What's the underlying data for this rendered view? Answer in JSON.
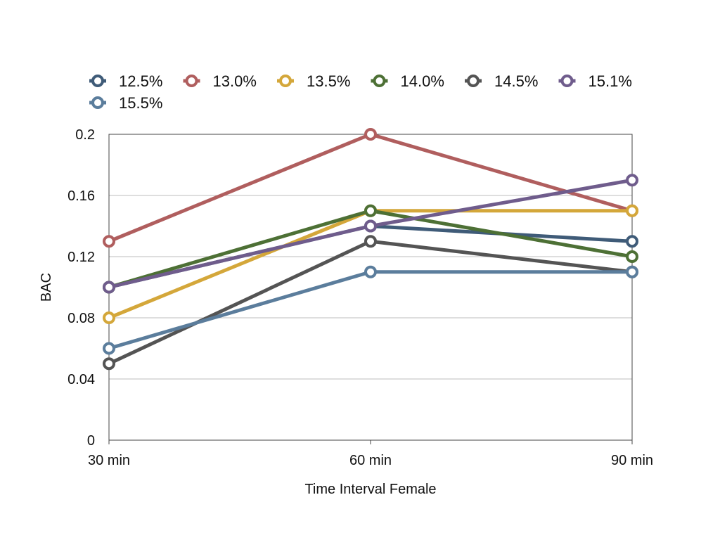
{
  "chart_data": {
    "type": "line",
    "xlabel": "Time Interval Female",
    "ylabel": "BAC",
    "categories": [
      "30 min",
      "60 min",
      "90 min"
    ],
    "ylim": [
      0,
      0.2
    ],
    "yticks": [
      "0",
      "0.04",
      "0.08",
      "0.12",
      "0.16",
      "0.2"
    ],
    "ytick_values": [
      0,
      0.04,
      0.08,
      0.12,
      0.16,
      0.2
    ],
    "grid": true,
    "legend_position": "top",
    "series": [
      {
        "name": "12.5%",
        "color": "#3f5b78",
        "values": [
          0.1,
          0.14,
          0.13
        ]
      },
      {
        "name": "13.0%",
        "color": "#b05e5e",
        "values": [
          0.13,
          0.2,
          0.15
        ]
      },
      {
        "name": "13.5%",
        "color": "#d4a73a",
        "values": [
          0.08,
          0.15,
          0.15
        ]
      },
      {
        "name": "14.0%",
        "color": "#4d7035",
        "values": [
          0.1,
          0.15,
          0.12
        ]
      },
      {
        "name": "14.5%",
        "color": "#545454",
        "values": [
          0.05,
          0.13,
          0.11
        ]
      },
      {
        "name": "15.1%",
        "color": "#6f5c8c",
        "values": [
          0.1,
          0.14,
          0.17
        ]
      },
      {
        "name": "15.5%",
        "color": "#5b7d9c",
        "values": [
          0.06,
          0.11,
          0.11
        ]
      }
    ]
  }
}
